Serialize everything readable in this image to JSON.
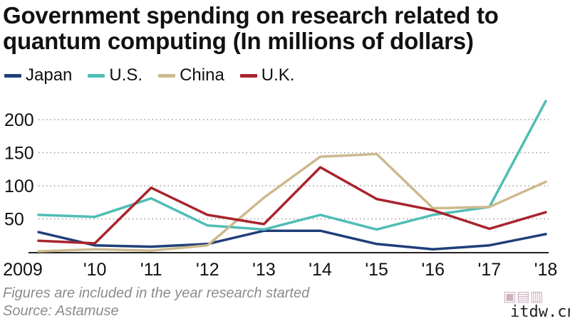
{
  "chart_data": {
    "type": "line",
    "title": "Government spending on research related to quantum computing (In millions of dollars)",
    "categories": [
      "2009",
      "'10",
      "'11",
      "'12",
      "'13",
      "'14",
      "'15",
      "'16",
      "'17",
      "'18"
    ],
    "series": [
      {
        "name": "Japan",
        "color": "#1f3f78",
        "values": [
          30,
          10,
          8,
          12,
          32,
          32,
          12,
          4,
          10,
          27
        ]
      },
      {
        "name": "U.S.",
        "color": "#4fbdb5",
        "values": [
          56,
          53,
          81,
          40,
          34,
          56,
          34,
          56,
          68,
          228
        ]
      },
      {
        "name": "China",
        "color": "#cdb98d",
        "values": [
          1,
          4,
          2,
          10,
          82,
          144,
          148,
          66,
          68,
          106
        ]
      },
      {
        "name": "U.K.",
        "color": "#a8242e",
        "values": [
          17,
          13,
          97,
          56,
          42,
          128,
          80,
          63,
          35,
          60
        ]
      }
    ],
    "yticks": [
      "50",
      "100",
      "150",
      "200"
    ],
    "ylim": [
      0,
      230
    ],
    "grid": true,
    "legend_position": "top-left"
  },
  "notes": {
    "footnote": "Figures are included in the year research started",
    "source": "Source: Astamuse"
  },
  "watermark": {
    "text": "itdw.cn"
  }
}
